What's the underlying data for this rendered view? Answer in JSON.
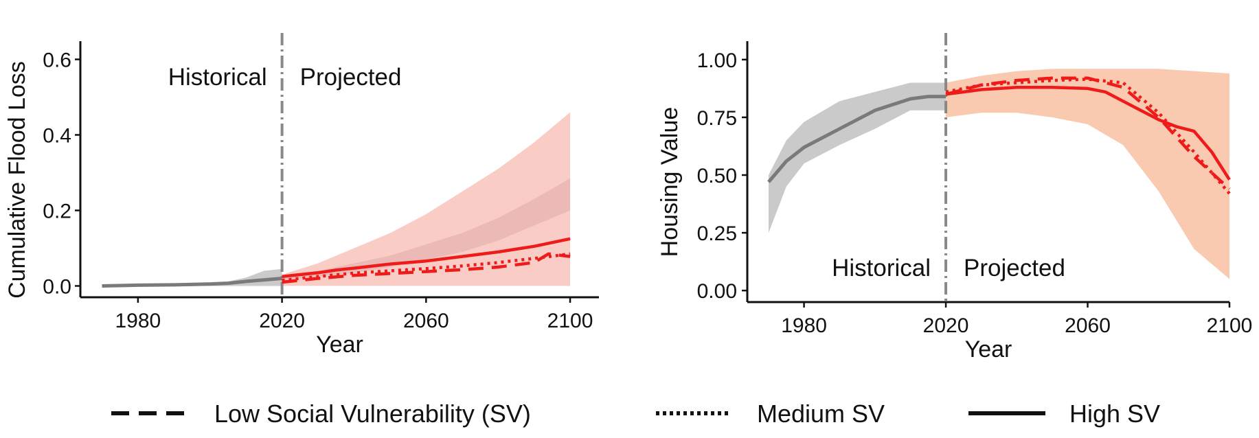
{
  "legend": [
    {
      "label": "Low Social Vulnerability (SV)",
      "style": "dashed"
    },
    {
      "label": "Medium SV",
      "style": "dotted"
    },
    {
      "label": "High SV",
      "style": "solid"
    }
  ],
  "colors": {
    "historical": "#7a7a7a",
    "projected": "#ee1b1b",
    "band_low": "#f6b7ad",
    "band_high": "#f7b48d",
    "hist_band": "#b8b8b8"
  },
  "chart_data": [
    {
      "type": "line",
      "xlabel": "Year",
      "ylabel": "Cumulative Flood Loss",
      "xlim": [
        1964,
        2108
      ],
      "ylim": [
        -0.03,
        0.63
      ],
      "xticks": [
        1980,
        2020,
        2060,
        2100
      ],
      "yticks": [
        0.0,
        0.2,
        0.4,
        0.6
      ],
      "ytick_labels": [
        "0.0",
        "0.2",
        "0.4",
        "0.6"
      ],
      "divider_year": 2020,
      "region_labels": {
        "historical": "Historical",
        "projected": "Projected",
        "position": "top"
      },
      "historical": {
        "x": [
          1970,
          1980,
          1990,
          2000,
          2005,
          2010,
          2015,
          2020
        ],
        "y": [
          0.0,
          0.002,
          0.003,
          0.005,
          0.007,
          0.012,
          0.016,
          0.02
        ],
        "band_upper": [
          0.003,
          0.005,
          0.007,
          0.01,
          0.012,
          0.022,
          0.04,
          0.045
        ],
        "band_lower": [
          0.0,
          0.0,
          0.0,
          0.0,
          0.0,
          0.0,
          0.0,
          0.0
        ]
      },
      "series": [
        {
          "name": "Low Social Vulnerability (SV)",
          "style": "dashed",
          "x": [
            2020,
            2030,
            2040,
            2050,
            2060,
            2070,
            2080,
            2090,
            2094,
            2100
          ],
          "y": [
            0.01,
            0.02,
            0.028,
            0.033,
            0.038,
            0.043,
            0.05,
            0.062,
            0.085,
            0.078
          ]
        },
        {
          "name": "Medium SV",
          "style": "dotted",
          "x": [
            2020,
            2030,
            2040,
            2050,
            2060,
            2070,
            2080,
            2090,
            2100
          ],
          "y": [
            0.015,
            0.025,
            0.034,
            0.04,
            0.046,
            0.053,
            0.062,
            0.073,
            0.085
          ]
        },
        {
          "name": "High SV",
          "style": "solid",
          "x": [
            2020,
            2025,
            2030,
            2035,
            2040,
            2050,
            2060,
            2070,
            2080,
            2090,
            2100
          ],
          "y": [
            0.025,
            0.03,
            0.035,
            0.042,
            0.047,
            0.058,
            0.066,
            0.078,
            0.09,
            0.105,
            0.125
          ]
        }
      ],
      "projected_band": {
        "x": [
          2020,
          2030,
          2040,
          2050,
          2060,
          2070,
          2080,
          2090,
          2100
        ],
        "upper": [
          0.03,
          0.06,
          0.1,
          0.14,
          0.19,
          0.25,
          0.31,
          0.38,
          0.46
        ],
        "lower": [
          0.0,
          0.0,
          0.0,
          0.0,
          0.0,
          0.0,
          0.0,
          0.0,
          0.0
        ],
        "inner_upper": [
          0.025,
          0.04,
          0.06,
          0.08,
          0.11,
          0.14,
          0.18,
          0.23,
          0.285
        ],
        "inner_lower": [
          0.015,
          0.025,
          0.035,
          0.05,
          0.07,
          0.09,
          0.12,
          0.16,
          0.2
        ]
      }
    },
    {
      "type": "line",
      "xlabel": "Year",
      "ylabel": "Housing Value",
      "xlim": [
        1964,
        2100
      ],
      "ylim": [
        -0.05,
        1.05
      ],
      "xticks": [
        1980,
        2020,
        2060,
        2100
      ],
      "yticks": [
        0.0,
        0.25,
        0.5,
        0.75,
        1.0
      ],
      "ytick_labels": [
        "0.00",
        "0.25",
        "0.50",
        "0.75",
        "1.00"
      ],
      "divider_year": 2020,
      "region_labels": {
        "historical": "Historical",
        "projected": "Projected",
        "position": "bottom"
      },
      "historical": {
        "x": [
          1970,
          1975,
          1980,
          1990,
          2000,
          2010,
          2015,
          2020
        ],
        "y": [
          0.47,
          0.56,
          0.62,
          0.7,
          0.78,
          0.83,
          0.84,
          0.84
        ],
        "band_upper": [
          0.5,
          0.65,
          0.73,
          0.82,
          0.86,
          0.9,
          0.9,
          0.9
        ],
        "band_lower": [
          0.25,
          0.45,
          0.55,
          0.63,
          0.7,
          0.78,
          0.78,
          0.78
        ]
      },
      "series": [
        {
          "name": "Low Social Vulnerability (SV)",
          "style": "dashed",
          "x": [
            2020,
            2030,
            2040,
            2050,
            2060,
            2070,
            2080,
            2090,
            2100
          ],
          "y": [
            0.85,
            0.89,
            0.91,
            0.92,
            0.92,
            0.88,
            0.75,
            0.58,
            0.44
          ]
        },
        {
          "name": "Medium SV",
          "style": "dotted",
          "x": [
            2020,
            2030,
            2040,
            2050,
            2060,
            2070,
            2080,
            2090,
            2100
          ],
          "y": [
            0.86,
            0.89,
            0.9,
            0.91,
            0.915,
            0.9,
            0.77,
            0.6,
            0.42
          ]
        },
        {
          "name": "High SV",
          "style": "solid",
          "x": [
            2020,
            2030,
            2040,
            2050,
            2060,
            2065,
            2070,
            2080,
            2085,
            2090,
            2095,
            2100
          ],
          "y": [
            0.85,
            0.87,
            0.88,
            0.88,
            0.875,
            0.86,
            0.82,
            0.74,
            0.71,
            0.69,
            0.6,
            0.48
          ]
        }
      ],
      "projected_band": {
        "x": [
          2020,
          2030,
          2040,
          2050,
          2060,
          2070,
          2080,
          2090,
          2100
        ],
        "upper": [
          0.9,
          0.93,
          0.95,
          0.96,
          0.96,
          0.96,
          0.96,
          0.95,
          0.94
        ],
        "lower": [
          0.75,
          0.77,
          0.77,
          0.75,
          0.72,
          0.63,
          0.43,
          0.18,
          0.05
        ]
      }
    }
  ]
}
